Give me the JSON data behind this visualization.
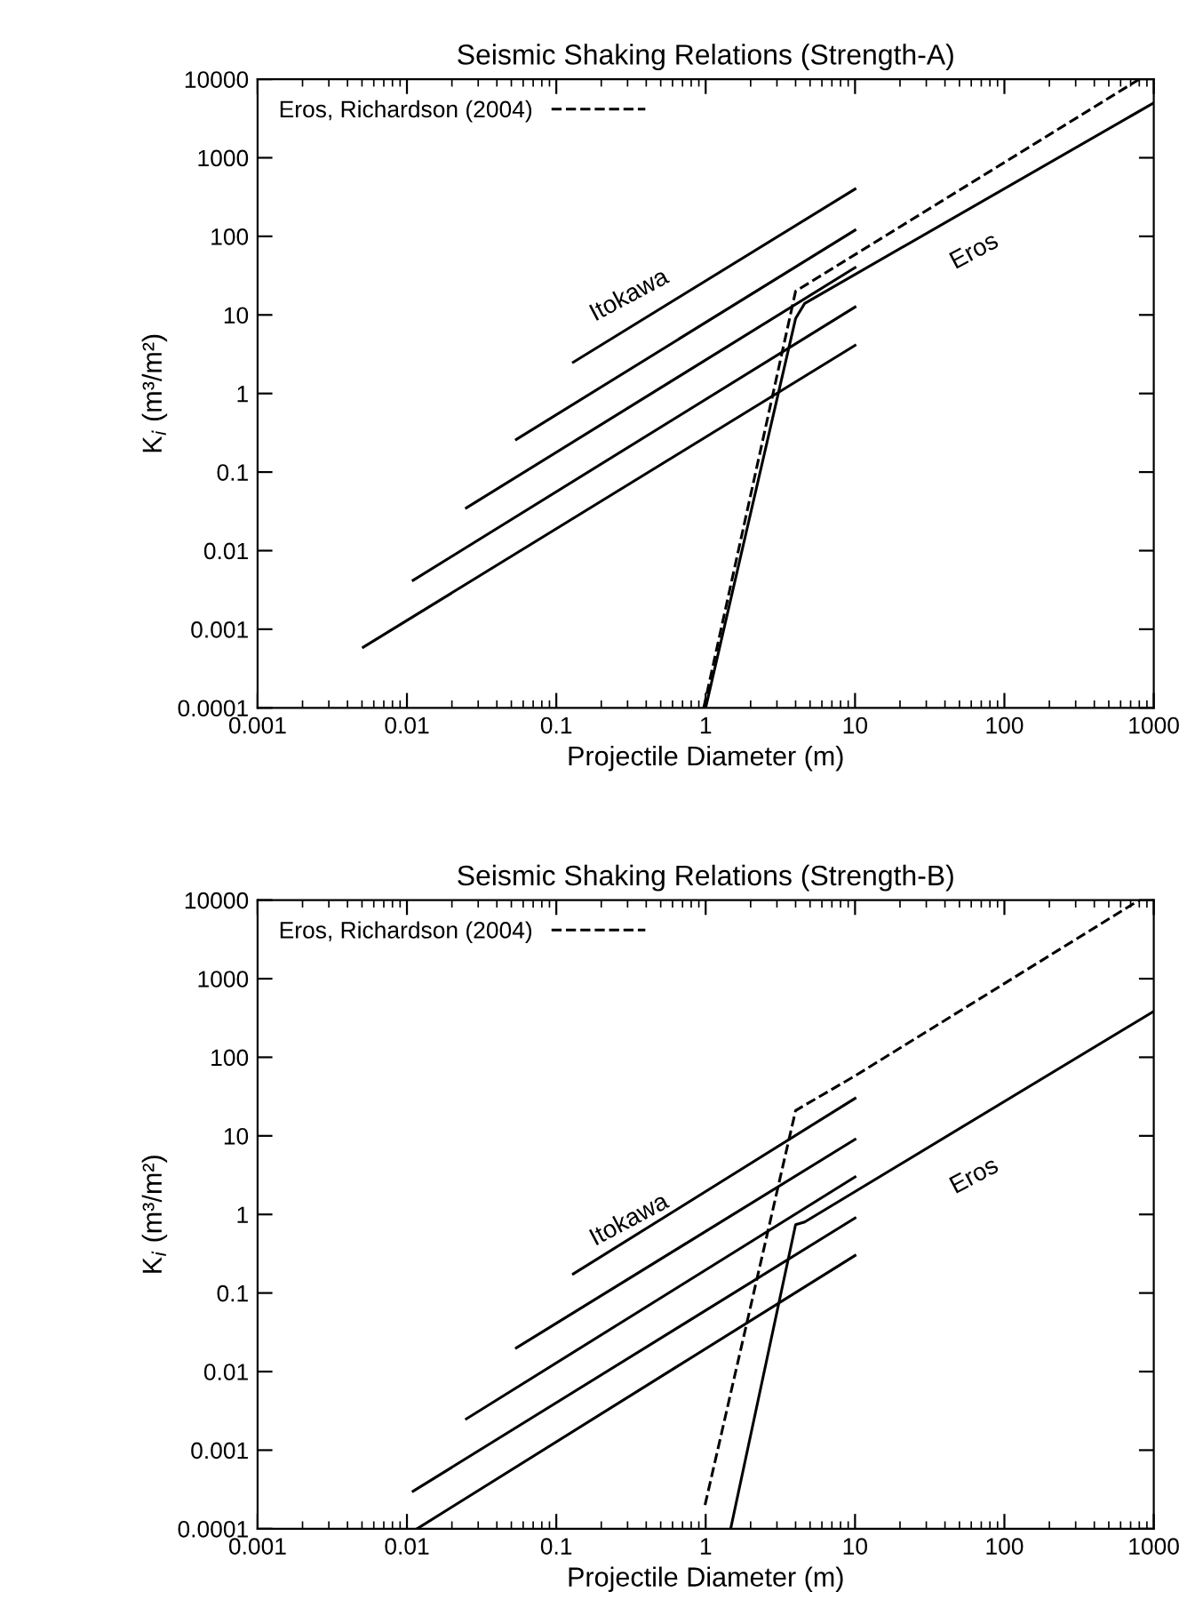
{
  "chart_data": [
    {
      "type": "line",
      "title": "Seismic Shaking Relations (Strength-A)",
      "xlabel": "Projectile Diameter (m)",
      "ylabel": "K$_{i}$ (m³/m²)",
      "log": "xy",
      "xlim": [
        0.001,
        1000
      ],
      "ylim": [
        0.0001,
        10000
      ],
      "xticks": [
        0.001,
        0.01,
        0.1,
        1,
        10,
        100,
        1000
      ],
      "yticks": [
        0.0001,
        0.001,
        0.01,
        0.1,
        1,
        10,
        100,
        1000,
        10000
      ],
      "grid": false,
      "legend": "top left",
      "line_style": "solid",
      "marker": "none",
      "annotations": [
        "Itokawa",
        "Eros"
      ],
      "series": [
        {
          "color": "#000000",
          "x": [
            0.13,
            10
          ],
          "values": [
            2.5,
            400
          ]
        },
        {
          "color": "#000000",
          "x": [
            0.054,
            10
          ],
          "values": [
            0.26,
            120
          ]
        },
        {
          "color": "#000000",
          "x": [
            0.025,
            10
          ],
          "values": [
            0.035,
            40
          ]
        },
        {
          "color": "#000000",
          "x": [
            0.011,
            10
          ],
          "values": [
            0.0042,
            12.6
          ]
        },
        {
          "color": "#000000",
          "x": [
            0.0051,
            10
          ],
          "values": [
            0.00059,
            4.1
          ]
        },
        {
          "color": "#000000",
          "x": [
            1,
            4,
            4.6,
            1000
          ],
          "values": [
            0.0001,
            9,
            14,
            5000
          ]
        },
        {
          "name": "Eros, Richardson (2004)",
          "color": "#000000",
          "line_style": "dashed",
          "x": [
            0.97,
            4,
            800
          ],
          "values": [
            0.0001,
            20,
            10000
          ]
        }
      ]
    },
    {
      "type": "line",
      "title": "Seismic Shaking Relations (Strength-B)",
      "xlabel": "Projectile Diameter (m)",
      "ylabel": "K$_{i}$ (m³/m²)",
      "log": "xy",
      "xlim": [
        0.001,
        1000
      ],
      "ylim": [
        0.0001,
        10000
      ],
      "xticks": [
        0.001,
        0.01,
        0.1,
        1,
        10,
        100,
        1000
      ],
      "yticks": [
        0.0001,
        0.001,
        0.01,
        0.1,
        1,
        10,
        100,
        1000,
        10000
      ],
      "grid": false,
      "legend": "top left",
      "line_style": "solid",
      "marker": "none",
      "annotations": [
        "Itokawa",
        "Eros"
      ],
      "series": [
        {
          "color": "#000000",
          "x": [
            0.13,
            10
          ],
          "values": [
            0.175,
            30
          ]
        },
        {
          "color": "#000000",
          "x": [
            0.054,
            10
          ],
          "values": [
            0.02,
            9
          ]
        },
        {
          "color": "#000000",
          "x": [
            0.025,
            10
          ],
          "values": [
            0.0025,
            3
          ]
        },
        {
          "color": "#000000",
          "x": [
            0.011,
            10
          ],
          "values": [
            0.0003,
            0.9
          ]
        },
        {
          "color": "#000000",
          "x": [
            0.0117,
            10
          ],
          "values": [
            0.0001,
            0.3
          ]
        },
        {
          "color": "#000000",
          "x": [
            1.47,
            4,
            4.6,
            1000
          ],
          "values": [
            0.0001,
            0.74,
            0.8,
            385
          ]
        },
        {
          "name": "Eros, Richardson (2004)",
          "color": "#000000",
          "line_style": "dashed",
          "x": [
            0.99,
            4,
            10,
            800
          ],
          "values": [
            0.0002,
            21,
            58,
            10000
          ]
        }
      ]
    }
  ]
}
